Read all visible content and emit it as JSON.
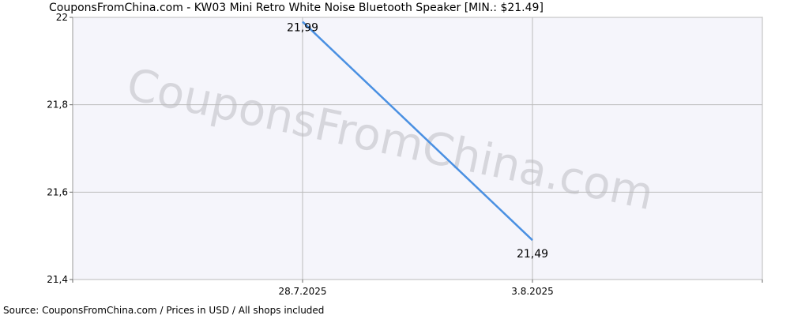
{
  "chart_data": {
    "type": "line",
    "title": "CouponsFromChina.com - KW03 Mini Retro White Noise Bluetooth Speaker [MIN.: $21.49]",
    "watermark": "CouponsFromChina.com",
    "source": "Source:  CouponsFromChina.com / Prices in USD / All shops included",
    "categories": [
      null,
      "28.7.2025",
      "3.8.2025",
      null
    ],
    "series": [
      {
        "color": "#4a90e2",
        "values": [
          null,
          21.99,
          21.49,
          null
        ],
        "value_labels": [
          null,
          "21,99",
          "21,49",
          null
        ]
      }
    ],
    "ylim": [
      21.4,
      22
    ],
    "yticks": [
      {
        "value": 21.4,
        "label": "21,4"
      },
      {
        "value": 21.6,
        "label": "21,6"
      },
      {
        "value": 21.8,
        "label": "21,8"
      },
      22
    ],
    "grid": true
  }
}
